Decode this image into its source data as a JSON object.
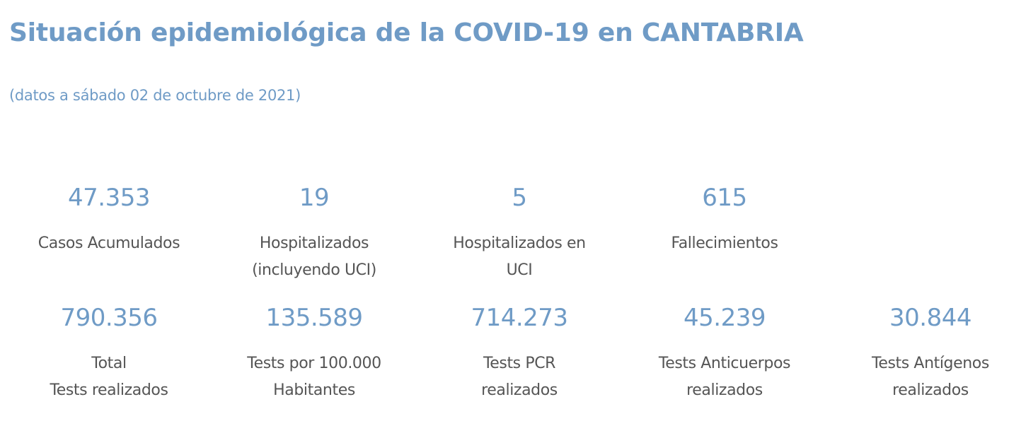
{
  "header": {
    "title": "Situación epidemiológica de la COVID-19 en CANTABRIA",
    "subtitle": "(datos a sábado 02 de octubre de 2021)"
  },
  "row1": [
    {
      "value": "47.353",
      "label_lines": [
        "Casos Acumulados"
      ]
    },
    {
      "value": "19",
      "label_lines": [
        "Hospitalizados",
        "(incluyendo UCI)"
      ]
    },
    {
      "value": "5",
      "label_lines": [
        "Hospitalizados en",
        "UCI"
      ]
    },
    {
      "value": "615",
      "label_lines": [
        "Fallecimientos"
      ]
    }
  ],
  "row2": [
    {
      "value": "790.356",
      "label_lines": [
        "Total",
        "Tests realizados"
      ]
    },
    {
      "value": "135.589",
      "label_lines": [
        "Tests por 100.000",
        "Habitantes"
      ]
    },
    {
      "value": "714.273",
      "label_lines": [
        "Tests PCR",
        "realizados"
      ]
    },
    {
      "value": "45.239",
      "label_lines": [
        "Tests Anticuerpos",
        "realizados"
      ]
    },
    {
      "value": "30.844",
      "label_lines": [
        "Tests Antígenos",
        "realizados"
      ]
    }
  ],
  "colors": {
    "accent": "#6f9bc6",
    "label_text": "#555555",
    "background": "#ffffff"
  }
}
